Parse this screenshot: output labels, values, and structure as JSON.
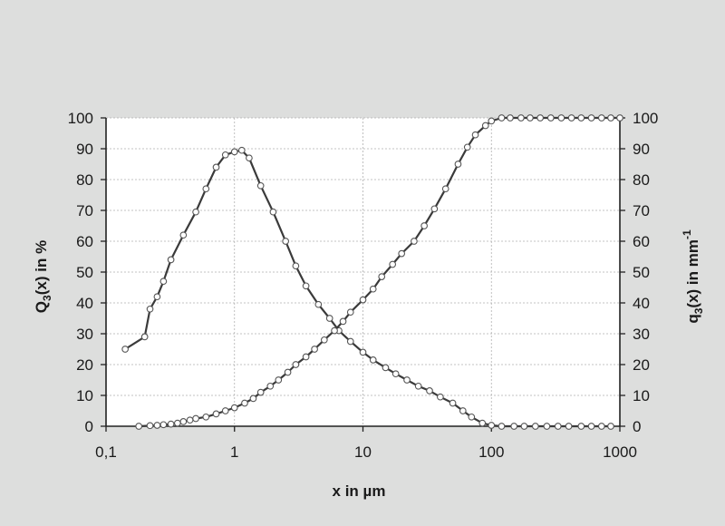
{
  "chart_data": {
    "type": "line",
    "x_scale": "log",
    "xlabel": "x in µm",
    "ylabel_left": {
      "base": "Q",
      "sub": "3",
      "rest": "(x) in %"
    },
    "ylabel_right": {
      "base": "q",
      "sub": "3",
      "rest": "(x) in mm",
      "sup": "-1"
    },
    "xlim": [
      0.1,
      1000
    ],
    "ylim": [
      0,
      100
    ],
    "x_ticks": [
      {
        "value": 0.1,
        "label": "0,1"
      },
      {
        "value": 1,
        "label": "1"
      },
      {
        "value": 10,
        "label": "10"
      },
      {
        "value": 100,
        "label": "100"
      },
      {
        "value": 1000,
        "label": "1000"
      }
    ],
    "y_ticks_left": [
      "0",
      "10",
      "20",
      "30",
      "40",
      "50",
      "60",
      "70",
      "80",
      "90",
      "100"
    ],
    "y_ticks_right": [
      "0",
      "10",
      "20",
      "30",
      "40",
      "50",
      "60",
      "70",
      "80",
      "90",
      "100"
    ],
    "grid": true,
    "colors": {
      "background": "#dddedd",
      "plot_area": "#ffffff",
      "line": "#3a3a3a",
      "marker_fill": "#ffffff"
    },
    "series": [
      {
        "axis": "right",
        "points": [
          [
            0.141,
            25
          ],
          [
            0.2,
            29
          ],
          [
            0.22,
            38
          ],
          [
            0.25,
            42
          ],
          [
            0.28,
            47
          ],
          [
            0.32,
            54
          ],
          [
            0.4,
            62
          ],
          [
            0.5,
            69.5
          ],
          [
            0.6,
            77
          ],
          [
            0.72,
            84
          ],
          [
            0.85,
            88
          ],
          [
            1,
            89
          ],
          [
            1.14,
            89.5
          ],
          [
            1.3,
            87
          ],
          [
            1.6,
            78
          ],
          [
            2,
            69.5
          ],
          [
            2.5,
            60
          ],
          [
            3,
            52
          ],
          [
            3.6,
            45.5
          ],
          [
            4.5,
            39.5
          ],
          [
            5.5,
            35
          ],
          [
            6.5,
            31
          ],
          [
            8,
            27.5
          ],
          [
            10,
            24
          ],
          [
            12,
            21.5
          ],
          [
            15,
            19
          ],
          [
            18,
            17
          ],
          [
            22,
            15
          ],
          [
            27,
            13
          ],
          [
            33,
            11.5
          ],
          [
            40,
            9.5
          ],
          [
            50,
            7.5
          ],
          [
            60,
            5
          ],
          [
            70,
            3
          ],
          [
            85,
            1
          ],
          [
            100,
            0.3
          ],
          [
            120,
            0
          ],
          [
            150,
            0
          ],
          [
            180,
            0
          ],
          [
            220,
            0
          ],
          [
            270,
            0
          ],
          [
            330,
            0
          ],
          [
            400,
            0
          ],
          [
            500,
            0
          ],
          [
            600,
            0
          ],
          [
            720,
            0
          ],
          [
            850,
            0
          ]
        ]
      },
      {
        "axis": "left",
        "points": [
          [
            0.18,
            0
          ],
          [
            0.22,
            0.2
          ],
          [
            0.25,
            0.3
          ],
          [
            0.28,
            0.5
          ],
          [
            0.32,
            0.7
          ],
          [
            0.36,
            1
          ],
          [
            0.4,
            1.5
          ],
          [
            0.45,
            2
          ],
          [
            0.5,
            2.5
          ],
          [
            0.6,
            3
          ],
          [
            0.72,
            4
          ],
          [
            0.85,
            5
          ],
          [
            1,
            6
          ],
          [
            1.2,
            7.5
          ],
          [
            1.4,
            9
          ],
          [
            1.6,
            11
          ],
          [
            1.9,
            13
          ],
          [
            2.2,
            15
          ],
          [
            2.6,
            17.5
          ],
          [
            3,
            20
          ],
          [
            3.6,
            22.5
          ],
          [
            4.2,
            25
          ],
          [
            5,
            28
          ],
          [
            6,
            31
          ],
          [
            7,
            34
          ],
          [
            8,
            37
          ],
          [
            10,
            41
          ],
          [
            12,
            44.5
          ],
          [
            14,
            48.5
          ],
          [
            17,
            52.5
          ],
          [
            20,
            56
          ],
          [
            25,
            60
          ],
          [
            30,
            65
          ],
          [
            36,
            70.5
          ],
          [
            44,
            77
          ],
          [
            55,
            85
          ],
          [
            65,
            90.5
          ],
          [
            75,
            94.5
          ],
          [
            90,
            97.5
          ],
          [
            100,
            99
          ],
          [
            120,
            100
          ],
          [
            140,
            100
          ],
          [
            170,
            100
          ],
          [
            200,
            100
          ],
          [
            240,
            100
          ],
          [
            290,
            100
          ],
          [
            350,
            100
          ],
          [
            420,
            100
          ],
          [
            500,
            100
          ],
          [
            600,
            100
          ],
          [
            720,
            100
          ],
          [
            850,
            100
          ],
          [
            1000,
            100
          ]
        ]
      }
    ]
  }
}
